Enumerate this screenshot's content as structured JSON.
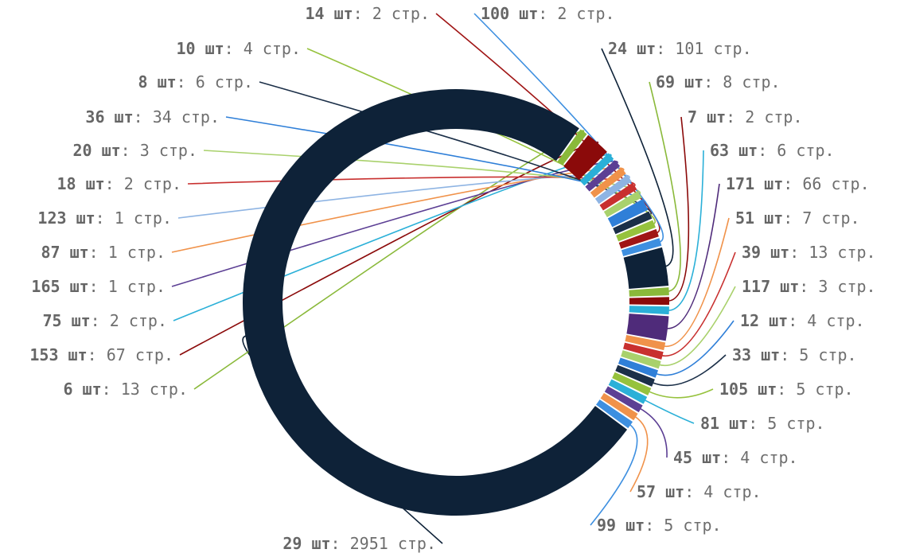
{
  "chart_data": {
    "type": "pie",
    "variant": "donut",
    "count_unit": "шт",
    "value_unit": "стр.",
    "slices": [
      {
        "count": "29",
        "pages": 2951,
        "color": "#0e2238"
      },
      {
        "count": "6",
        "pages": 13,
        "color": "#8ab93a"
      },
      {
        "count": "153",
        "pages": 67,
        "color": "#8b0a0a"
      },
      {
        "count": "75",
        "pages": 2,
        "color": "#2bb0d8"
      },
      {
        "count": "165",
        "pages": 1,
        "color": "#5c3f94"
      },
      {
        "count": "87",
        "pages": 1,
        "color": "#f0924a"
      },
      {
        "count": "123",
        "pages": 1,
        "color": "#8eb4e3"
      },
      {
        "count": "18",
        "pages": 2,
        "color": "#c8302f"
      },
      {
        "count": "20",
        "pages": 3,
        "color": "#a9d16c"
      },
      {
        "count": "36",
        "pages": 34,
        "color": "#2f7fd8"
      },
      {
        "count": "8",
        "pages": 6,
        "color": "#1b2f48"
      },
      {
        "count": "10",
        "pages": 4,
        "color": "#96c23d"
      },
      {
        "count": "14",
        "pages": 2,
        "color": "#a01515"
      },
      {
        "count": "100",
        "pages": 2,
        "color": "#3d8fe0"
      },
      {
        "count": "24",
        "pages": 101,
        "color": "#0e2238"
      },
      {
        "count": "69",
        "pages": 8,
        "color": "#8ab93a"
      },
      {
        "count": "7",
        "pages": 2,
        "color": "#8b0a0a"
      },
      {
        "count": "63",
        "pages": 6,
        "color": "#2bb0d8"
      },
      {
        "count": "171",
        "pages": 66,
        "color": "#4f2b7a"
      },
      {
        "count": "51",
        "pages": 7,
        "color": "#f0924a"
      },
      {
        "count": "39",
        "pages": 13,
        "color": "#c8302f"
      },
      {
        "count": "117",
        "pages": 3,
        "color": "#a9d16c"
      },
      {
        "count": "12",
        "pages": 4,
        "color": "#2f7fd8"
      },
      {
        "count": "33",
        "pages": 5,
        "color": "#1b2f48"
      },
      {
        "count": "105",
        "pages": 5,
        "color": "#96c23d"
      },
      {
        "count": "81",
        "pages": 5,
        "color": "#2bb0d8"
      },
      {
        "count": "45",
        "pages": 4,
        "color": "#5c3f94"
      },
      {
        "count": "57",
        "pages": 4,
        "color": "#f0924a"
      },
      {
        "count": "99",
        "pages": 5,
        "color": "#3d8fe0"
      }
    ]
  }
}
